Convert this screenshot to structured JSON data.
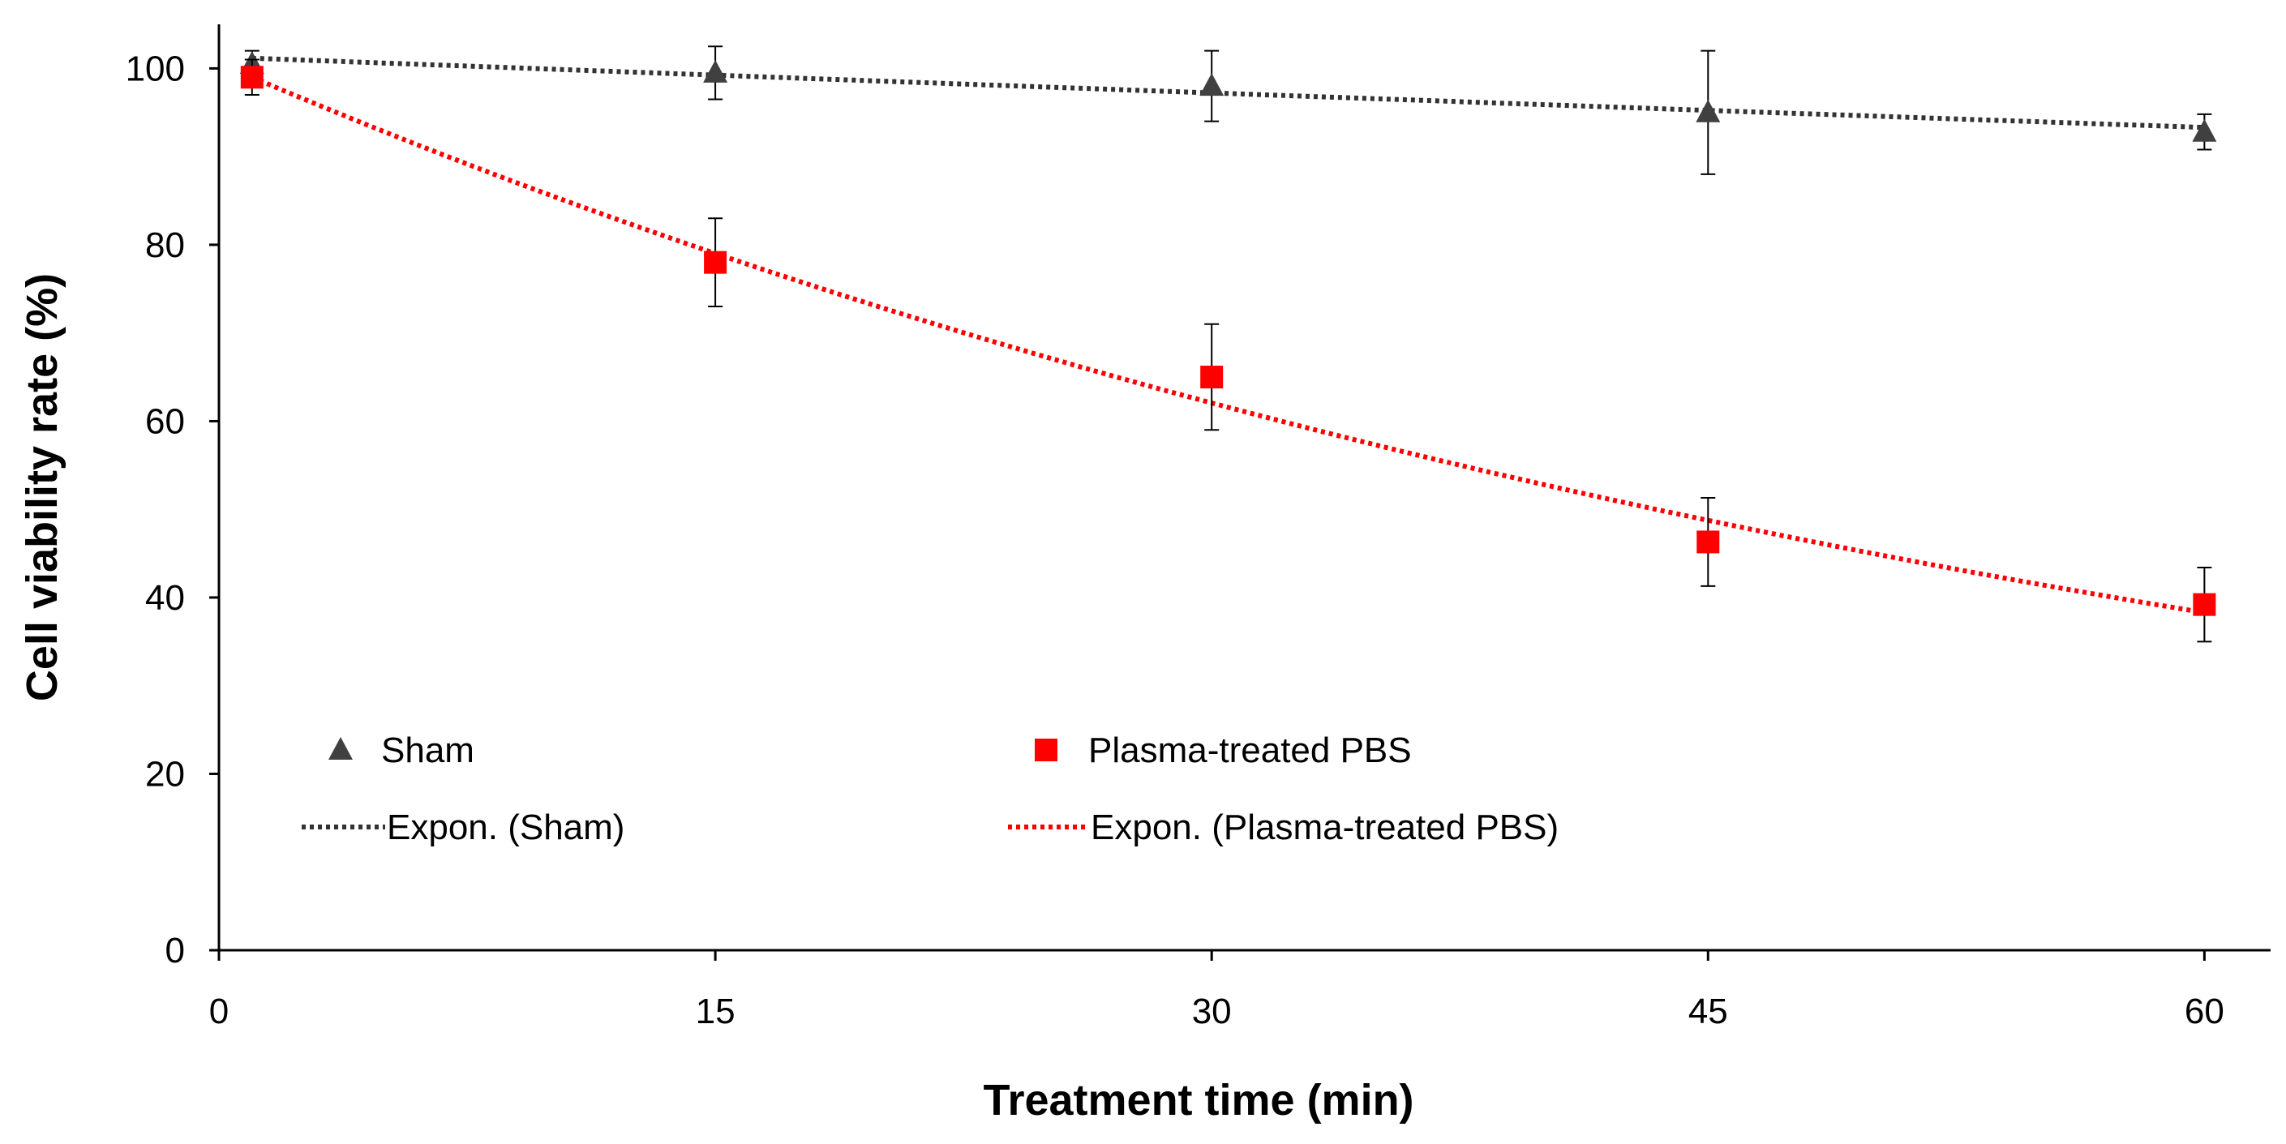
{
  "chart_data": {
    "type": "scatter",
    "title": "",
    "xlabel": "Treatment time (min)",
    "ylabel": "Cell viability rate (%)",
    "xlim": [
      0,
      62
    ],
    "ylim": [
      0,
      105
    ],
    "xticks": [
      0,
      15,
      30,
      45,
      60
    ],
    "yticks": [
      0,
      20,
      40,
      60,
      80,
      100
    ],
    "grid": false,
    "legend_position": "lower-left",
    "series": [
      {
        "name": "Sham",
        "marker": "triangle",
        "color": "#404040",
        "x": [
          1,
          15,
          30,
          45,
          60
        ],
        "y": [
          100.5,
          99.5,
          98,
          95,
          92.8
        ],
        "yerr": [
          1.5,
          3,
          4,
          7,
          2
        ],
        "trendline": {
          "name": "Expon. (Sham)",
          "type": "exponential",
          "color": "#333333",
          "a": 101.3,
          "b": -0.00137
        }
      },
      {
        "name": "Plasma-treated PBS",
        "marker": "square",
        "color": "#ff0000",
        "x": [
          1,
          15,
          30,
          45,
          60
        ],
        "y": [
          99,
          78,
          65,
          46.3,
          39.2
        ],
        "yerr": [
          2,
          5,
          6,
          5,
          4.2
        ],
        "trendline": {
          "name": "Expon. (Plasma-treated PBS)",
          "type": "exponential",
          "color": "#ff0000",
          "a": 100.6,
          "b": -0.0161
        }
      }
    ]
  }
}
